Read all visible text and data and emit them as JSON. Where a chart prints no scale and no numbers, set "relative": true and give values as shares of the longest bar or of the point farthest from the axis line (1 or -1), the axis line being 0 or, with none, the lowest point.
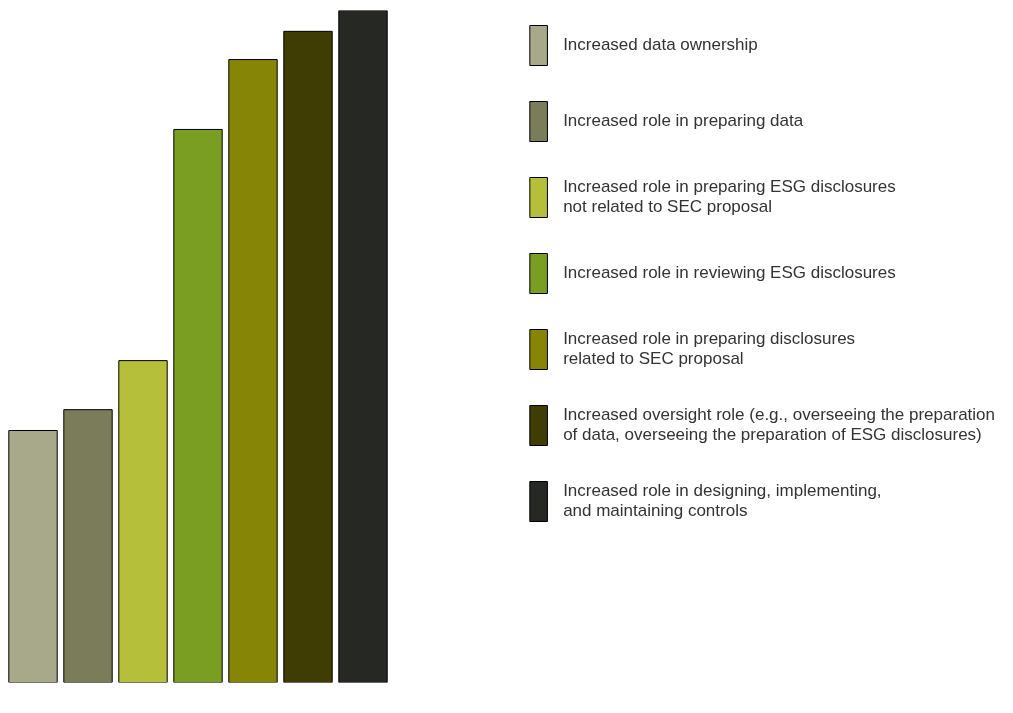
{
  "chart_data": {
    "type": "bar",
    "relative": true,
    "stacked": true,
    "categories": [
      null,
      null,
      null,
      null,
      null,
      null,
      null
    ],
    "series": [
      {
        "name": "Increased data ownership",
        "color": "#a8a98a",
        "values": [
          0.375,
          null,
          null,
          null,
          null,
          null,
          null
        ]
      },
      {
        "name": "Increased role in preparing data",
        "color": "#7a7c5a",
        "values": [
          null,
          0.406,
          null,
          null,
          null,
          null,
          null
        ]
      },
      {
        "name": "Increased role in preparing ESG disclosures\nnot related to SEC proposal",
        "color": "#b5bf3a",
        "values": [
          null,
          null,
          0.479,
          null,
          null,
          null,
          null
        ]
      },
      {
        "name": "Increased role in reviewing ESG disclosures",
        "color": "#7a9e22",
        "values": [
          null,
          null,
          null,
          0.823,
          null,
          null,
          null
        ]
      },
      {
        "name": "Increased role in preparing disclosures\nrelated to SEC proposal",
        "color": "#878505",
        "values": [
          null,
          null,
          null,
          null,
          0.927,
          null,
          null
        ]
      },
      {
        "name": "Increased oversight role (e.g., overseeing the preparation\nof data, overseeing the preparation of ESG disclosures)",
        "color": "#403d04",
        "values": [
          null,
          null,
          null,
          null,
          null,
          0.969,
          null
        ]
      },
      {
        "name": "Increased role in designing, implementing,\nand maintaining controls",
        "color": "#262824",
        "values": [
          null,
          null,
          null,
          null,
          null,
          null,
          1.0
        ]
      }
    ],
    "grid": false,
    "legend": "right"
  }
}
